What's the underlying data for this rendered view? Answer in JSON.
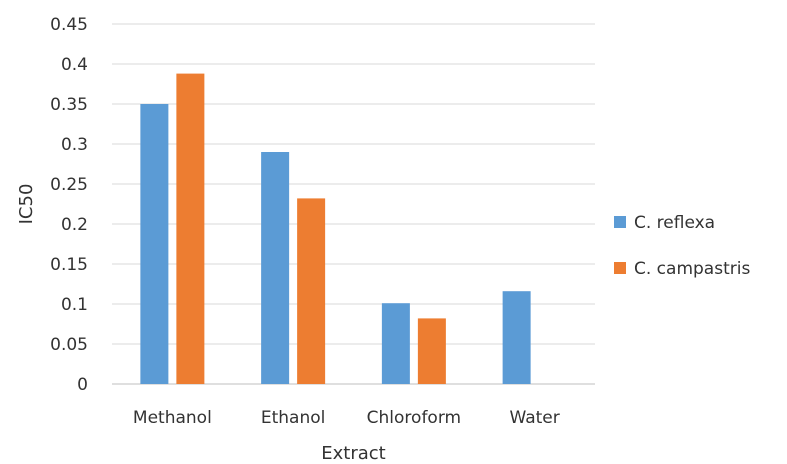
{
  "chart_data": {
    "type": "bar",
    "title": "",
    "xlabel": "Extract",
    "ylabel": "IC50",
    "categories": [
      "Methanol",
      "Ethanol",
      "Chloroform",
      "Water"
    ],
    "series": [
      {
        "name": "C. reflexa",
        "color": "#5b9bd5",
        "values": [
          0.35,
          0.29,
          0.101,
          0.116
        ]
      },
      {
        "name": "C. campastris",
        "color": "#ed7d31",
        "values": [
          0.388,
          0.232,
          0.082,
          null
        ]
      }
    ],
    "ylim": [
      0,
      0.45
    ],
    "yticks": [
      0,
      0.05,
      0.1,
      0.15,
      0.2,
      0.25,
      0.3,
      0.35,
      0.4,
      0.45
    ],
    "ytick_labels": [
      "0",
      "0.05",
      "0.1",
      "0.15",
      "0.2",
      "0.25",
      "0.3",
      "0.35",
      "0.4",
      "0.45"
    ],
    "grid": true,
    "legend_position": "right"
  }
}
